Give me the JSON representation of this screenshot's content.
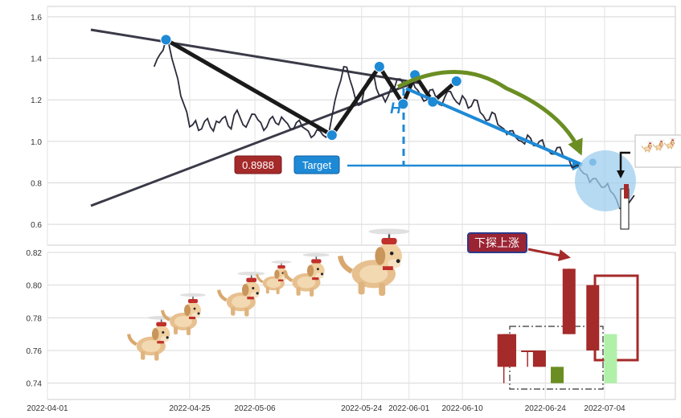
{
  "chart_data": [
    {
      "type": "line",
      "panel": "top",
      "ylim": [
        0.5,
        1.65
      ],
      "yticks": [
        "0.6",
        "0.8",
        "1.0",
        "1.2",
        "1.4",
        "1.6"
      ],
      "grid": true,
      "series": [
        {
          "x": [
            "2022-04-19",
            "2022-04-20",
            "2022-04-21",
            "2022-04-22",
            "2022-04-23",
            "2022-04-24",
            "2022-04-25",
            "2022-04-26",
            "2022-04-27",
            "2022-04-28",
            "2022-04-29",
            "2022-04-30",
            "2022-05-01",
            "2022-05-02",
            "2022-05-03",
            "2022-05-04",
            "2022-05-05",
            "2022-05-06",
            "2022-05-07",
            "2022-05-08",
            "2022-05-09",
            "2022-05-10",
            "2022-05-11",
            "2022-05-12",
            "2022-05-13",
            "2022-05-14",
            "2022-05-15",
            "2022-05-16",
            "2022-05-17",
            "2022-05-18",
            "2022-05-19",
            "2022-05-20",
            "2022-05-21",
            "2022-05-22",
            "2022-05-23",
            "2022-05-24",
            "2022-05-25",
            "2022-05-26",
            "2022-05-27",
            "2022-05-28",
            "2022-05-29",
            "2022-05-30",
            "2022-05-31",
            "2022-06-01",
            "2022-06-02",
            "2022-06-03",
            "2022-06-04",
            "2022-06-05",
            "2022-06-06",
            "2022-06-07",
            "2022-06-08",
            "2022-06-09",
            "2022-06-10",
            "2022-06-11",
            "2022-06-12",
            "2022-06-13",
            "2022-06-14",
            "2022-06-15",
            "2022-06-16",
            "2022-06-17",
            "2022-06-18",
            "2022-06-19",
            "2022-06-20",
            "2022-06-21",
            "2022-06-22",
            "2022-06-23",
            "2022-06-24",
            "2022-06-25",
            "2022-06-26",
            "2022-06-27",
            "2022-06-28",
            "2022-06-29",
            "2022-06-30",
            "2022-07-01",
            "2022-07-02",
            "2022-07-03",
            "2022-07-04",
            "2022-07-05",
            "2022-07-06",
            "2022-07-07",
            "2022-07-08",
            "2022-07-09"
          ],
          "y": [
            1.36,
            1.42,
            1.49,
            1.4,
            1.3,
            1.18,
            1.07,
            1.1,
            1.06,
            1.11,
            1.05,
            1.09,
            1.12,
            1.06,
            1.15,
            1.08,
            1.1,
            1.13,
            1.09,
            1.07,
            1.12,
            1.08,
            1.1,
            1.06,
            1.09,
            1.07,
            1.05,
            1.03,
            1.05,
            1.02,
            1.12,
            1.25,
            1.36,
            1.3,
            1.2,
            1.18,
            1.29,
            1.33,
            1.22,
            1.19,
            1.26,
            1.3,
            1.28,
            1.29,
            1.26,
            1.22,
            1.2,
            1.25,
            1.18,
            1.21,
            1.24,
            1.19,
            1.22,
            1.16,
            1.2,
            1.14,
            1.1,
            1.14,
            1.08,
            1.06,
            1.05,
            1.02,
            1.0,
            1.03,
            0.98,
            1.0,
            0.96,
            0.94,
            0.97,
            0.93,
            0.91,
            0.88,
            0.86,
            0.84,
            0.82,
            0.8,
            0.78,
            0.76,
            0.72,
            0.67,
            0.7,
            0.74
          ]
        }
      ],
      "markers": [
        {
          "x": "2022-04-21",
          "y": 1.49
        },
        {
          "x": "2022-05-19",
          "y": 1.03
        },
        {
          "x": "2022-05-27",
          "y": 1.36
        },
        {
          "x": "2022-05-31",
          "y": 1.18
        },
        {
          "x": "2022-06-02",
          "y": 1.32
        },
        {
          "x": "2022-06-05",
          "y": 1.19
        },
        {
          "x": "2022-06-09",
          "y": 1.29
        },
        {
          "x": "2022-07-02",
          "y": 0.9
        }
      ],
      "annotations": {
        "price_label": "0.8988",
        "target_label": "Target",
        "height_label": "H"
      }
    },
    {
      "type": "candlestick",
      "panel": "bottom",
      "ylim": [
        0.73,
        0.82
      ],
      "yticks": [
        "0.74",
        "0.76",
        "0.78",
        "0.80",
        "0.82"
      ],
      "xticks": [
        "2022-04-01",
        "2022-04-25",
        "2022-05-06",
        "2022-05-24",
        "2022-06-01",
        "2022-06-10",
        "2022-06-24",
        "2022-07-04"
      ],
      "grid": true,
      "candles": [
        {
          "x": "2022-06-17",
          "open": 0.77,
          "close": 0.75,
          "high": 0.77,
          "low": 0.74,
          "color": "#a52a2a"
        },
        {
          "x": "2022-06-18",
          "open": 0.77,
          "close": 0.75,
          "high": 0.77,
          "low": 0.75,
          "color": "#a52a2a"
        },
        {
          "x": "2022-06-21",
          "open": 0.76,
          "close": 0.76,
          "high": 0.76,
          "low": 0.75,
          "color": "#a52a2a"
        },
        {
          "x": "2022-06-23",
          "open": 0.76,
          "close": 0.75,
          "high": 0.76,
          "low": 0.75,
          "color": "#a52a2a"
        },
        {
          "x": "2022-06-26",
          "open": 0.75,
          "close": 0.74,
          "high": 0.75,
          "low": 0.74,
          "color": "#6b8e23"
        },
        {
          "x": "2022-06-28",
          "open": 0.81,
          "close": 0.77,
          "high": 0.81,
          "low": 0.77,
          "color": "#a52a2a"
        },
        {
          "x": "2022-07-02",
          "open": 0.8,
          "close": 0.76,
          "high": 0.8,
          "low": 0.76,
          "color": "#a52a2a"
        },
        {
          "x": "2022-07-05",
          "open": 0.74,
          "close": 0.77,
          "high": 0.77,
          "low": 0.74,
          "color": "#b0f0a8"
        }
      ],
      "annotations": {
        "callout": "下探上涨"
      }
    }
  ],
  "colors": {
    "price_line": "#2b2b3b",
    "trend_line": "#3a3a48",
    "marker": "#1e8ad6",
    "price_badge": "#a52a2a",
    "target_badge": "#1e8ad6",
    "arc": "#6b8e23",
    "target_circle": "#9ecdee",
    "callout_bg": "#9b2433",
    "callout_border": "#2c3a8a",
    "grid": "#d8d8d8"
  },
  "icons": [
    "flying-dog-sticker",
    "helicopter-dog-icon"
  ]
}
